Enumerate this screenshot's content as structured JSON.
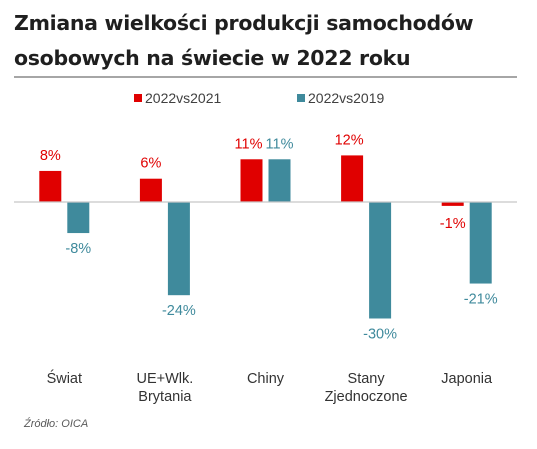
{
  "title_line1": "Zmiana wielkości produkcji samochodów",
  "title_line2": "osobowych na świecie w 2022 roku",
  "source": "Źródło: OICA",
  "chart_data": {
    "type": "bar",
    "categories": [
      [
        "Świat"
      ],
      [
        "UE+Wlk.",
        "Brytania"
      ],
      [
        "Chiny"
      ],
      [
        "Stany",
        "Zjednoczone"
      ],
      [
        "Japonia"
      ]
    ],
    "series": [
      {
        "name": "2022vs2021",
        "values": [
          8,
          6,
          11,
          12,
          -1
        ],
        "labels": [
          "8%",
          "6%",
          "11%",
          "12%",
          "-1%"
        ],
        "color": "#e00000"
      },
      {
        "name": "2022vs2019",
        "values": [
          -8,
          -24,
          11,
          -30,
          -21
        ],
        "labels": [
          "-8%",
          "-24%",
          "11%",
          "-30%",
          "-21%"
        ],
        "color": "#3f8a9c"
      }
    ],
    "legend": "top-center",
    "grid": false,
    "ylim": [
      -30,
      12
    ],
    "axis_line_color": "#c8c8c8",
    "label_colors": {
      "2022vs2021": "#e00000",
      "2022vs2019": "#3f8a9c",
      "category": "#333333"
    }
  }
}
